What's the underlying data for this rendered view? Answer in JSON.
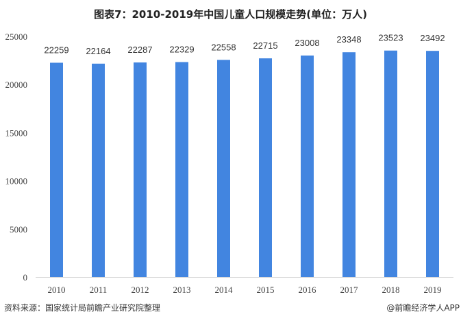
{
  "chart_data": {
    "type": "bar",
    "title": "图表7：2010-2019年中国儿童人口规模走势(单位：万人)",
    "categories": [
      "2010",
      "2011",
      "2012",
      "2013",
      "2014",
      "2015",
      "2016",
      "2017",
      "2018",
      "2019"
    ],
    "values": [
      22259,
      22164,
      22287,
      22329,
      22558,
      22715,
      23008,
      23348,
      23523,
      23492
    ],
    "data_labels": [
      "22259",
      "22164",
      "22287",
      "22329",
      "22558",
      "22715",
      "23008",
      "23348",
      "23523",
      "23492"
    ],
    "xlabel": "",
    "ylabel": "",
    "ylim": [
      0,
      25000
    ],
    "yticks": [
      "0",
      "5000",
      "10000",
      "15000",
      "20000",
      "25000"
    ],
    "bar_color": "#4285E0",
    "grid": false,
    "legend": "none"
  },
  "footer": {
    "source": "资料来源：国家统计局前瞻产业研究院整理",
    "credit": "@前瞻经济学人APP"
  }
}
